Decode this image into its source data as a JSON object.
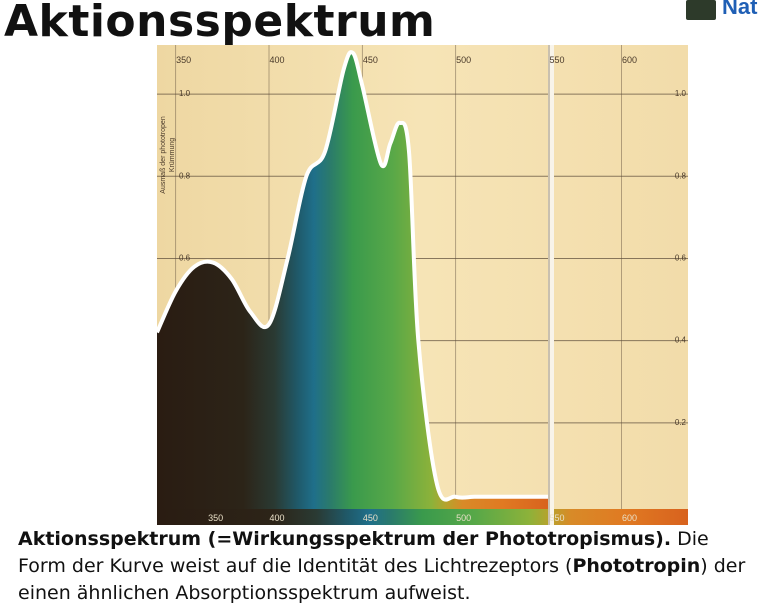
{
  "slide": {
    "title": "Aktionsspektrum",
    "logo_text": "Nat"
  },
  "caption": {
    "part1_bold": "Aktionsspektrum (=Wirkungsspektrum der Phototropismus).",
    "part2": "  Die Form der Kurve weist auf die Identität des Lichtrezeptors  (",
    "part3_bold": "Phototropin",
    "part4": ") der einen ähnlichen Absorptionsspektrum aufweist."
  },
  "colors": {
    "paper": "#f6e4b6",
    "grid": "#5a4a38",
    "curve_outline": "#ffffff",
    "spectrum_dark": "#2a1c12",
    "spectrum_blue": "#1f6f8a",
    "spectrum_green": "#3a9a4c"
  },
  "chart_data": {
    "type": "area",
    "ylabel": "Ausmaß der phototropen Krümmung",
    "xticks_top": [
      "350",
      "400",
      "450",
      "500",
      "550",
      "600"
    ],
    "xticks_bottom": [
      "350",
      "400",
      "450",
      "500",
      "550",
      "600"
    ],
    "yticks_left": [
      "1.0",
      "0.8",
      "0.6"
    ],
    "yticks_right": [
      "1.0",
      "0.8",
      "0.6",
      "0.4",
      "0.2"
    ],
    "xlim": [
      340,
      650
    ],
    "ylim": [
      0,
      1.1
    ],
    "grid": true,
    "x": [
      340,
      350,
      360,
      370,
      380,
      390,
      400,
      410,
      420,
      430,
      440,
      445,
      450,
      460,
      465,
      470,
      475,
      480,
      490,
      500,
      510,
      520,
      530,
      540,
      550
    ],
    "series": [
      {
        "values": [
          0.42,
          0.52,
          0.58,
          0.59,
          0.55,
          0.47,
          0.44,
          0.6,
          0.8,
          0.86,
          1.06,
          1.1,
          1.02,
          0.83,
          0.88,
          0.93,
          0.86,
          0.4,
          0.05,
          0.02,
          0.02,
          0.02,
          0.02,
          0.02,
          0.02
        ]
      }
    ]
  }
}
